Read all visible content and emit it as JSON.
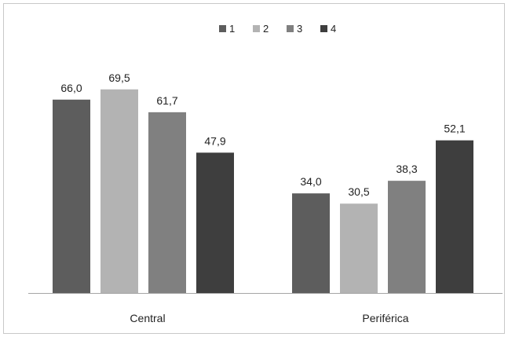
{
  "chart_data": {
    "type": "bar",
    "categories": [
      "Central",
      "Periférica"
    ],
    "series": [
      {
        "name": "1",
        "values": [
          66.0,
          34.0
        ],
        "labels": [
          "66,0",
          "34,0"
        ],
        "color": "#5d5d5d"
      },
      {
        "name": "2",
        "values": [
          69.5,
          30.5
        ],
        "labels": [
          "69,5",
          "30,5"
        ],
        "color": "#b3b3b3"
      },
      {
        "name": "3",
        "values": [
          61.7,
          38.3
        ],
        "labels": [
          "61,7",
          "38,3"
        ],
        "color": "#808080"
      },
      {
        "name": "4",
        "values": [
          47.9,
          52.1
        ],
        "labels": [
          "47,9",
          "52,1"
        ],
        "color": "#3e3e3e"
      }
    ],
    "title": "",
    "xlabel": "",
    "ylabel": "",
    "ylim": [
      0,
      75
    ],
    "grid": false,
    "legend_position": "top-center"
  }
}
